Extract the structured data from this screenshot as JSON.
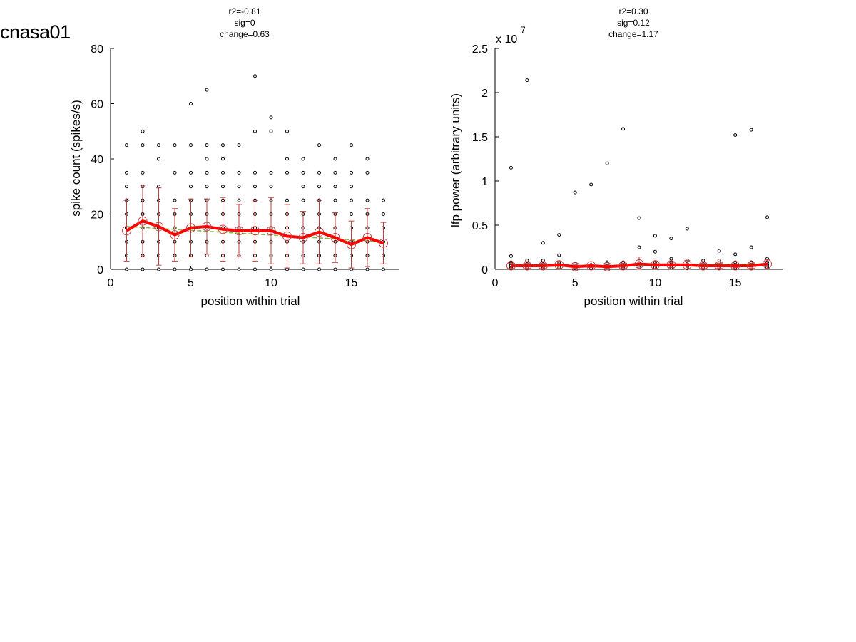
{
  "page": {
    "title": "cnasa01"
  },
  "chart_data": [
    {
      "type": "scatter",
      "title_lines": [
        "r2=-0.81",
        "sig=0",
        "change=0.63"
      ],
      "xlabel": "position within trial",
      "ylabel": "spike count (spikes/s)",
      "xlim": [
        0,
        18
      ],
      "ylim": [
        0,
        80
      ],
      "xticks": [
        0,
        5,
        10,
        15
      ],
      "yticks": [
        0,
        20,
        40,
        60,
        80
      ],
      "xtick_labels": [
        "0",
        "5",
        "10",
        "15"
      ],
      "ytick_labels": [
        "0",
        "20",
        "40",
        "60",
        "80"
      ],
      "exponent_label": "",
      "grid": false,
      "colors": {
        "points": "#000000",
        "mean": "#ff0000",
        "errorbar": "#c04040",
        "fit": "#80c040"
      },
      "points": [
        [
          1,
          0
        ],
        [
          1,
          5
        ],
        [
          1,
          10
        ],
        [
          1,
          15
        ],
        [
          1,
          20
        ],
        [
          1,
          25
        ],
        [
          1,
          30
        ],
        [
          1,
          35
        ],
        [
          1,
          45
        ],
        [
          2,
          0
        ],
        [
          2,
          5
        ],
        [
          2,
          10
        ],
        [
          2,
          15
        ],
        [
          2,
          20
        ],
        [
          2,
          25
        ],
        [
          2,
          30
        ],
        [
          2,
          35
        ],
        [
          2,
          45
        ],
        [
          2,
          50
        ],
        [
          3,
          0
        ],
        [
          3,
          5
        ],
        [
          3,
          10
        ],
        [
          3,
          15
        ],
        [
          3,
          20
        ],
        [
          3,
          25
        ],
        [
          3,
          30
        ],
        [
          3,
          40
        ],
        [
          3,
          45
        ],
        [
          4,
          0
        ],
        [
          4,
          5
        ],
        [
          4,
          10
        ],
        [
          4,
          15
        ],
        [
          4,
          20
        ],
        [
          4,
          25
        ],
        [
          4,
          35
        ],
        [
          4,
          45
        ],
        [
          5,
          0
        ],
        [
          5,
          5
        ],
        [
          5,
          10
        ],
        [
          5,
          15
        ],
        [
          5,
          20
        ],
        [
          5,
          25
        ],
        [
          5,
          30
        ],
        [
          5,
          35
        ],
        [
          5,
          45
        ],
        [
          5,
          60
        ],
        [
          6,
          0
        ],
        [
          6,
          5
        ],
        [
          6,
          10
        ],
        [
          6,
          15
        ],
        [
          6,
          20
        ],
        [
          6,
          25
        ],
        [
          6,
          30
        ],
        [
          6,
          35
        ],
        [
          6,
          40
        ],
        [
          6,
          45
        ],
        [
          6,
          65
        ],
        [
          7,
          0
        ],
        [
          7,
          5
        ],
        [
          7,
          10
        ],
        [
          7,
          15
        ],
        [
          7,
          20
        ],
        [
          7,
          25
        ],
        [
          7,
          30
        ],
        [
          7,
          35
        ],
        [
          7,
          40
        ],
        [
          7,
          45
        ],
        [
          8,
          0
        ],
        [
          8,
          5
        ],
        [
          8,
          10
        ],
        [
          8,
          15
        ],
        [
          8,
          20
        ],
        [
          8,
          25
        ],
        [
          8,
          30
        ],
        [
          8,
          35
        ],
        [
          8,
          45
        ],
        [
          9,
          0
        ],
        [
          9,
          5
        ],
        [
          9,
          10
        ],
        [
          9,
          15
        ],
        [
          9,
          20
        ],
        [
          9,
          25
        ],
        [
          9,
          30
        ],
        [
          9,
          35
        ],
        [
          9,
          50
        ],
        [
          9,
          70
        ],
        [
          10,
          0
        ],
        [
          10,
          5
        ],
        [
          10,
          10
        ],
        [
          10,
          15
        ],
        [
          10,
          20
        ],
        [
          10,
          25
        ],
        [
          10,
          30
        ],
        [
          10,
          35
        ],
        [
          10,
          50
        ],
        [
          10,
          55
        ],
        [
          11,
          0
        ],
        [
          11,
          5
        ],
        [
          11,
          10
        ],
        [
          11,
          15
        ],
        [
          11,
          20
        ],
        [
          11,
          25
        ],
        [
          11,
          35
        ],
        [
          11,
          40
        ],
        [
          11,
          50
        ],
        [
          12,
          0
        ],
        [
          12,
          5
        ],
        [
          12,
          10
        ],
        [
          12,
          15
        ],
        [
          12,
          20
        ],
        [
          12,
          25
        ],
        [
          12,
          30
        ],
        [
          12,
          35
        ],
        [
          12,
          40
        ],
        [
          13,
          0
        ],
        [
          13,
          5
        ],
        [
          13,
          10
        ],
        [
          13,
          15
        ],
        [
          13,
          20
        ],
        [
          13,
          25
        ],
        [
          13,
          30
        ],
        [
          13,
          35
        ],
        [
          13,
          45
        ],
        [
          14,
          0
        ],
        [
          14,
          5
        ],
        [
          14,
          10
        ],
        [
          14,
          15
        ],
        [
          14,
          20
        ],
        [
          14,
          25
        ],
        [
          14,
          30
        ],
        [
          14,
          35
        ],
        [
          14,
          40
        ],
        [
          15,
          0
        ],
        [
          15,
          5
        ],
        [
          15,
          10
        ],
        [
          15,
          15
        ],
        [
          15,
          20
        ],
        [
          15,
          25
        ],
        [
          15,
          30
        ],
        [
          15,
          35
        ],
        [
          15,
          45
        ],
        [
          16,
          0
        ],
        [
          16,
          5
        ],
        [
          16,
          10
        ],
        [
          16,
          15
        ],
        [
          16,
          20
        ],
        [
          16,
          25
        ],
        [
          16,
          35
        ],
        [
          16,
          40
        ],
        [
          17,
          0
        ],
        [
          17,
          5
        ],
        [
          17,
          10
        ],
        [
          17,
          15
        ],
        [
          17,
          20
        ],
        [
          17,
          25
        ]
      ],
      "mean": {
        "x": [
          1,
          2,
          3,
          4,
          5,
          6,
          7,
          8,
          9,
          10,
          11,
          12,
          13,
          14,
          15,
          16,
          17
        ],
        "y": [
          14,
          17.5,
          15.5,
          12.5,
          15,
          15.5,
          14.5,
          14,
          14,
          14,
          12,
          11.5,
          13.5,
          11.5,
          9,
          11.5,
          9.5
        ],
        "err": [
          11,
          13,
          14,
          9.5,
          10.5,
          10,
          11.5,
          9.5,
          11,
          12,
          11.5,
          9.5,
          11.5,
          9,
          8.5,
          10.5,
          7.5
        ]
      },
      "fit": {
        "x": [
          1,
          17
        ],
        "y": [
          15.5,
          10
        ]
      }
    },
    {
      "type": "scatter",
      "title_lines": [
        "r2=0.30",
        "sig=0.12",
        "change=1.17"
      ],
      "xlabel": "position within trial",
      "ylabel": "lfp power (arbitrary units)",
      "xlim": [
        0,
        18
      ],
      "ylim": [
        0,
        2.5
      ],
      "xticks": [
        0,
        5,
        10,
        15
      ],
      "yticks": [
        0,
        0.5,
        1,
        1.5,
        2,
        2.5
      ],
      "xtick_labels": [
        "0",
        "5",
        "10",
        "15"
      ],
      "ytick_labels": [
        "0",
        "0.5",
        "1",
        "1.5",
        "2",
        "2.5"
      ],
      "exponent_label": "x 10",
      "exponent_power": "7",
      "grid": false,
      "colors": {
        "points": "#000000",
        "mean": "#ff0000",
        "errorbar": "#c04040",
        "fit": "#80c040"
      },
      "points": [
        [
          1,
          1.15
        ],
        [
          1,
          0.15
        ],
        [
          1,
          0.08
        ],
        [
          1,
          0.06
        ],
        [
          1,
          0.04
        ],
        [
          1,
          0.02
        ],
        [
          1,
          0.01
        ],
        [
          2,
          2.14
        ],
        [
          2,
          0.1
        ],
        [
          2,
          0.06
        ],
        [
          2,
          0.03
        ],
        [
          2,
          0.02
        ],
        [
          3,
          0.3
        ],
        [
          3,
          0.1
        ],
        [
          3,
          0.06
        ],
        [
          3,
          0.03
        ],
        [
          3,
          0.01
        ],
        [
          4,
          0.39
        ],
        [
          4,
          0.16
        ],
        [
          4,
          0.07
        ],
        [
          4,
          0.05
        ],
        [
          4,
          0.02
        ],
        [
          5,
          0.87
        ],
        [
          5,
          0.06
        ],
        [
          5,
          0.03
        ],
        [
          5,
          0.01
        ],
        [
          6,
          0.96
        ],
        [
          6,
          0.05
        ],
        [
          6,
          0.03
        ],
        [
          6,
          0.01
        ],
        [
          7,
          1.2
        ],
        [
          7,
          0.08
        ],
        [
          7,
          0.06
        ],
        [
          7,
          0.04
        ],
        [
          7,
          0.02
        ],
        [
          8,
          1.59
        ],
        [
          8,
          0.08
        ],
        [
          8,
          0.05
        ],
        [
          8,
          0.03
        ],
        [
          8,
          0.01
        ],
        [
          9,
          0.58
        ],
        [
          9,
          0.25
        ],
        [
          9,
          0.07
        ],
        [
          9,
          0.04
        ],
        [
          9,
          0.02
        ],
        [
          10,
          0.38
        ],
        [
          10,
          0.2
        ],
        [
          10,
          0.08
        ],
        [
          10,
          0.05
        ],
        [
          10,
          0.02
        ],
        [
          11,
          0.35
        ],
        [
          11,
          0.12
        ],
        [
          11,
          0.08
        ],
        [
          11,
          0.05
        ],
        [
          11,
          0.02
        ],
        [
          12,
          0.46
        ],
        [
          12,
          0.1
        ],
        [
          12,
          0.06
        ],
        [
          12,
          0.03
        ],
        [
          12,
          0.01
        ],
        [
          13,
          0.1
        ],
        [
          13,
          0.06
        ],
        [
          13,
          0.04
        ],
        [
          13,
          0.02
        ],
        [
          14,
          0.21
        ],
        [
          14,
          0.1
        ],
        [
          14,
          0.07
        ],
        [
          14,
          0.04
        ],
        [
          14,
          0.02
        ],
        [
          15,
          1.52
        ],
        [
          15,
          0.17
        ],
        [
          15,
          0.08
        ],
        [
          15,
          0.05
        ],
        [
          15,
          0.02
        ],
        [
          16,
          1.58
        ],
        [
          16,
          0.25
        ],
        [
          16,
          0.08
        ],
        [
          16,
          0.05
        ],
        [
          16,
          0.02
        ],
        [
          17,
          0.59
        ],
        [
          17,
          0.12
        ],
        [
          17,
          0.08
        ],
        [
          17,
          0.05
        ],
        [
          17,
          0.02
        ]
      ],
      "mean": {
        "x": [
          1,
          2,
          3,
          4,
          5,
          6,
          7,
          8,
          9,
          10,
          11,
          12,
          13,
          14,
          15,
          16,
          17
        ],
        "y": [
          0.04,
          0.04,
          0.04,
          0.05,
          0.03,
          0.04,
          0.03,
          0.04,
          0.06,
          0.05,
          0.05,
          0.05,
          0.04,
          0.04,
          0.04,
          0.04,
          0.06
        ],
        "err": [
          0.03,
          0.03,
          0.03,
          0.04,
          0.02,
          0.02,
          0.02,
          0.03,
          0.08,
          0.04,
          0.03,
          0.05,
          0.03,
          0.03,
          0.02,
          0.03,
          0.05
        ]
      },
      "fit": {
        "x": [
          1,
          17
        ],
        "y": [
          0.03,
          0.06
        ]
      }
    }
  ]
}
